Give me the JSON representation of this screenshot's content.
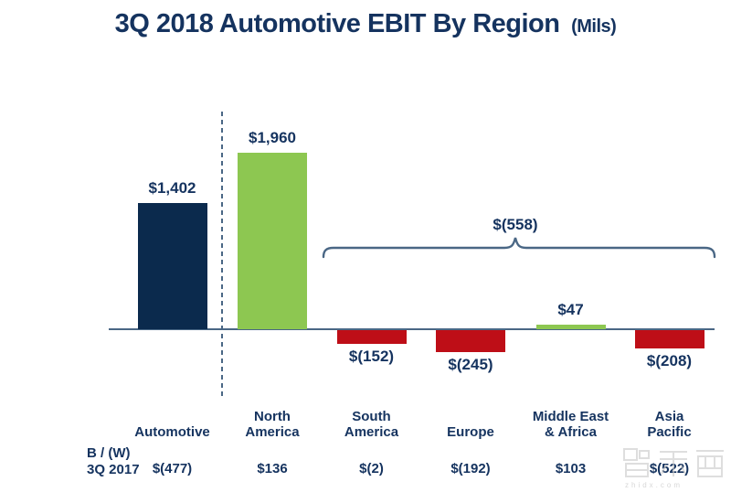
{
  "title": {
    "main": "3Q 2018 Automotive EBIT By Region",
    "suffix": "(Mils)"
  },
  "chart_data": {
    "type": "bar",
    "title": "3Q 2018 Automotive EBIT By Region (Mils)",
    "categories": [
      "Automotive",
      "North\nAmerica",
      "South\nAmerica",
      "Europe",
      "Middle East\n& Africa",
      "Asia\nPacific"
    ],
    "values": [
      1402,
      1960,
      -152,
      -245,
      47,
      -208
    ],
    "value_labels": [
      "$1,402",
      "$1,960",
      "$(152)",
      "$(245)",
      "$47",
      "$(208)"
    ],
    "bar_colors": [
      "#0B2A4D",
      "#8DC751",
      "#BE0E17",
      "#BE0E17",
      "#8DC751",
      "#BE0E17"
    ],
    "ylim": [
      -300,
      2100
    ],
    "grid": false,
    "legend": false,
    "separator_after_category": "Automotive",
    "annotation": {
      "label": "$(558)",
      "from": "South\nAmerica",
      "to": "Asia\nPacific"
    },
    "comparison_row": {
      "label_line1": "B / (W)",
      "label_line2": "3Q 2017",
      "values": [
        "$(477)",
        "$136",
        "$(2)",
        "$(192)",
        "$103",
        "$(522)"
      ]
    }
  },
  "colors": {
    "navy": "#0B2A4D",
    "green": "#8DC751",
    "red": "#BE0E17",
    "text": "#15335F",
    "axis": "#4A6785"
  },
  "watermark": {
    "url": "zhidx.com"
  }
}
